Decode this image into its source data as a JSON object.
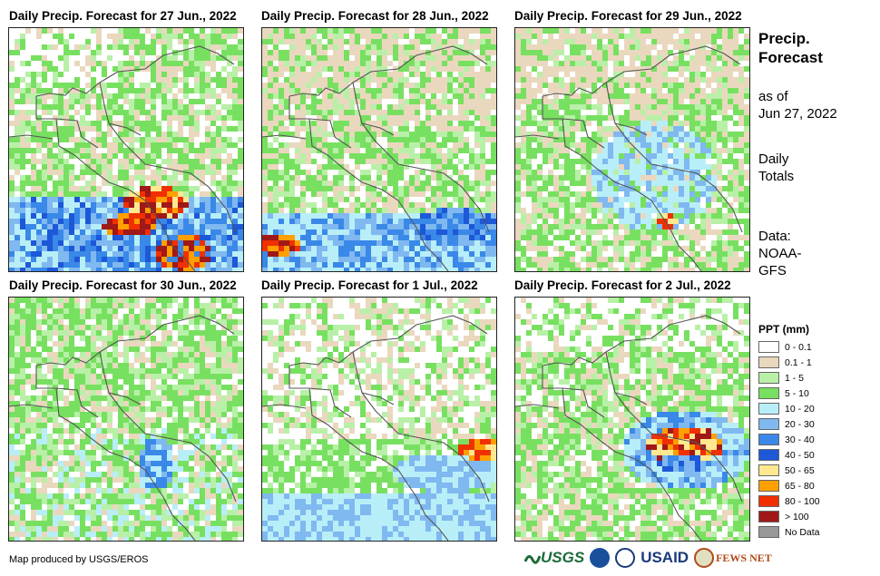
{
  "panels": [
    {
      "title": "Daily Precip. Forecast for 27 Jun., 2022",
      "pattern": "heavy-south"
    },
    {
      "title": "Daily Precip. Forecast for 28 Jun., 2022",
      "pattern": "moderate-pacific"
    },
    {
      "title": "Daily Precip. Forecast for 29 Jun., 2022",
      "pattern": "light-central"
    },
    {
      "title": "Daily Precip. Forecast for 30 Jun., 2022",
      "pattern": "mixed-green"
    },
    {
      "title": "Daily Precip. Forecast for 1 Jul., 2022",
      "pattern": "dry-north-caribbean-band"
    },
    {
      "title": "Daily Precip. Forecast for 2 Jul., 2022",
      "pattern": "caribbean-storm"
    }
  ],
  "side": {
    "title_line1": "Precip.",
    "title_line2": "Forecast",
    "asof_line1": "as of",
    "asof_line2": "Jun 27, 2022",
    "totals_line1": "Daily",
    "totals_line2": "Totals",
    "data_line1": "Data:",
    "data_line2": "NOAA-",
    "data_line3": "GFS"
  },
  "legend": {
    "title": "PPT (mm)",
    "items": [
      {
        "label": "0 - 0.1",
        "color": "#ffffff"
      },
      {
        "label": "0.1 - 1",
        "color": "#ead8be"
      },
      {
        "label": "1 - 5",
        "color": "#b8f0a8"
      },
      {
        "label": "5 - 10",
        "color": "#78e060"
      },
      {
        "label": "10 - 20",
        "color": "#b8eef8"
      },
      {
        "label": "20 - 30",
        "color": "#80b8f0"
      },
      {
        "label": "30 - 40",
        "color": "#3a88e8"
      },
      {
        "label": "40 - 50",
        "color": "#1c58d8"
      },
      {
        "label": "50 - 65",
        "color": "#ffe890"
      },
      {
        "label": "65 - 80",
        "color": "#ffa000"
      },
      {
        "label": "80 - 100",
        "color": "#f03000"
      },
      {
        "label": "> 100",
        "color": "#a01818"
      },
      {
        "label": "No Data",
        "color": "#999999"
      }
    ]
  },
  "credit": "Map produced by USGS/EROS",
  "logos": {
    "usgs": "USGS",
    "usaid": "USAID",
    "fewsnet": "FEWS NET"
  }
}
